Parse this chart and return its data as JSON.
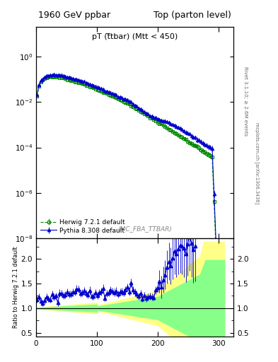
{
  "title_left": "1960 GeV ppbar",
  "title_right": "Top (parton level)",
  "plot_title": "pT (t̅tbar) (Mtt < 450)",
  "annotation": "(MC_FBA_TTBAR)",
  "ylabel_ratio": "Ratio to Herwig 7.2.1 default",
  "right_label_top": "Rivet 3.1.10; ≥ 2.6M events",
  "right_label_bottom": "mcplots.cern.ch [arXiv:1306.3436]",
  "legend": [
    "Herwig 7.2.1 default",
    "Pythia 8.308 default"
  ],
  "herwig_color": "#008800",
  "pythia_color": "#0000cc",
  "xlim": [
    0,
    325
  ],
  "ylim_main": [
    1e-08,
    20
  ],
  "ylim_ratio": [
    0.42,
    2.42
  ],
  "ratio_yticks": [
    0.5,
    1.0,
    1.5,
    2.0
  ],
  "xticks": [
    0,
    100,
    200,
    300
  ],
  "figsize": [
    3.93,
    5.12
  ],
  "dpi": 100
}
